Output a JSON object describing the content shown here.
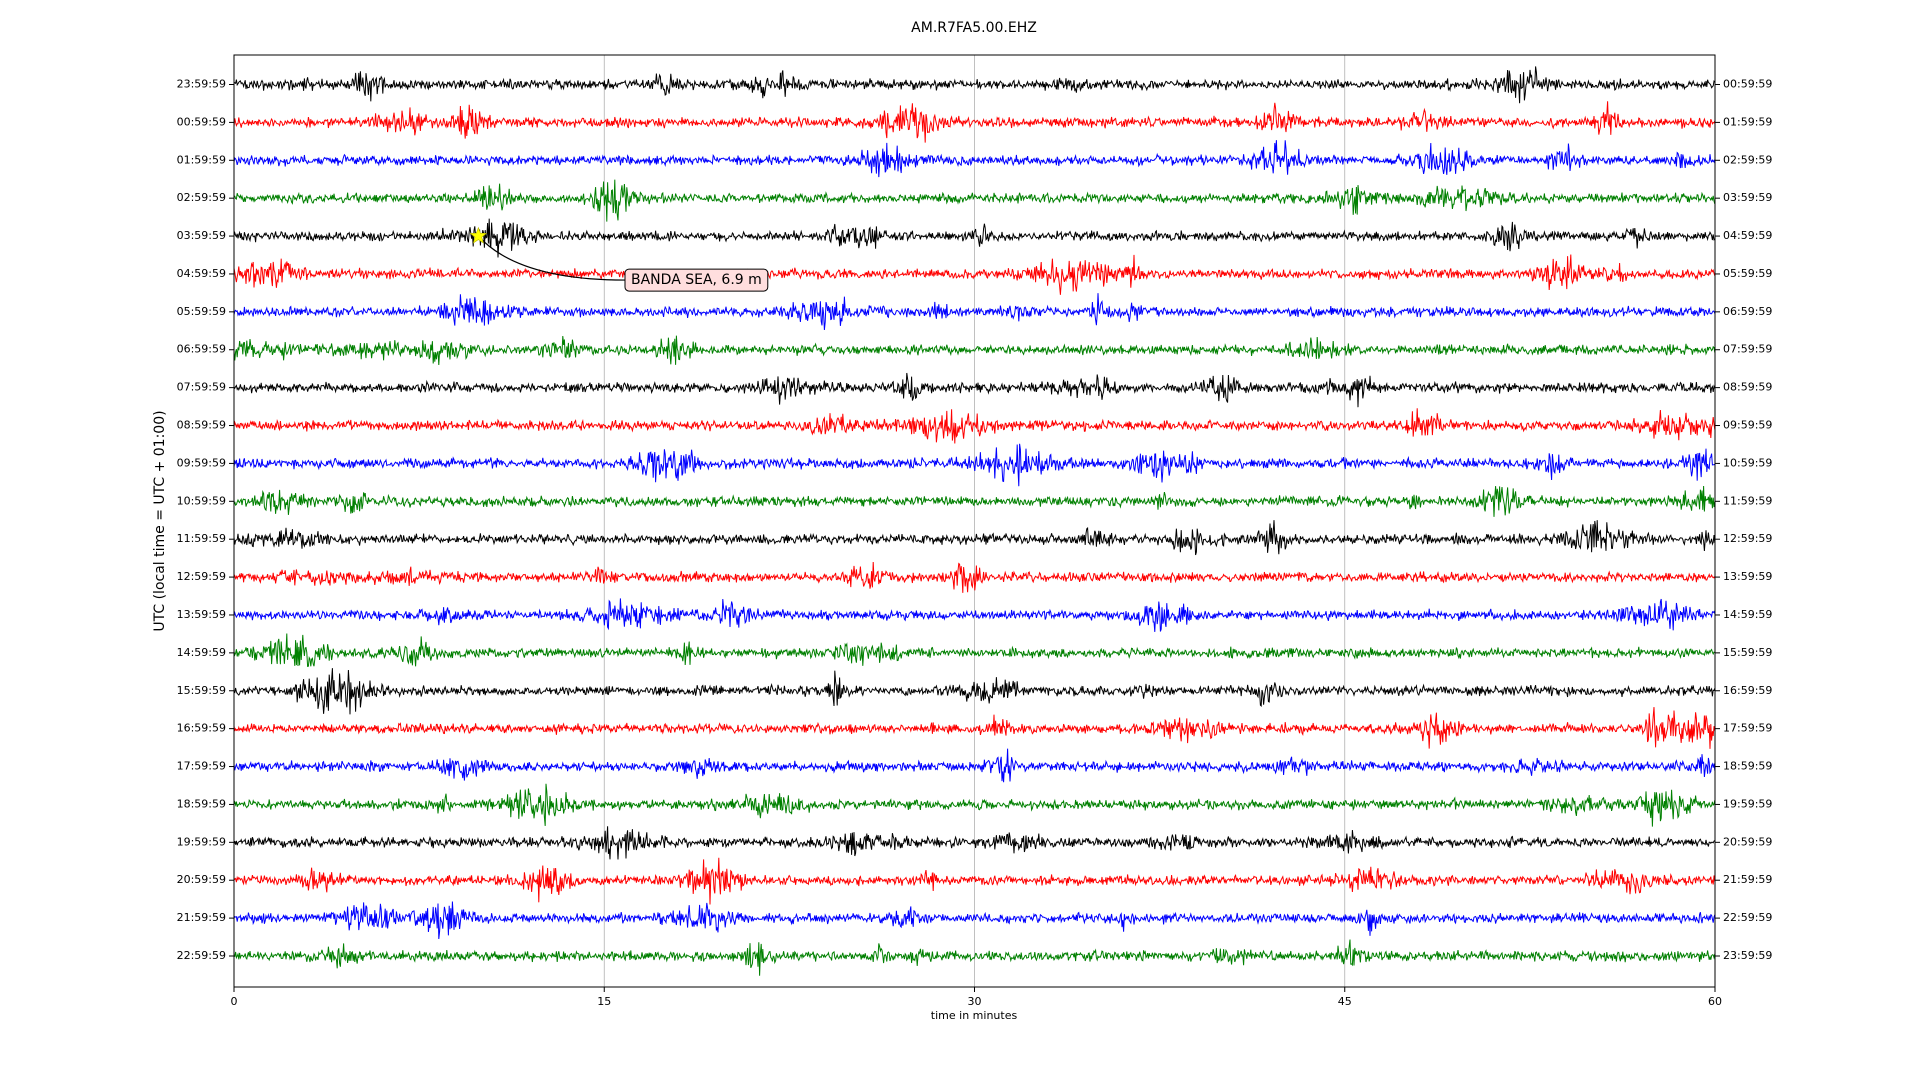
{
  "chart_data": {
    "type": "dayplot",
    "title": "AM.R7FA5.00.EHZ",
    "xlabel": "time in minutes",
    "ylabel": "UTC (local time = UTC + 01:00)",
    "xlim": [
      0,
      60
    ],
    "xticks": [
      0,
      15,
      30,
      45,
      60
    ],
    "grid": true,
    "rows": [
      {
        "left": "23:59:59",
        "right": "00:59:59",
        "color": "#000000"
      },
      {
        "left": "00:59:59",
        "right": "01:59:59",
        "color": "#ff0000"
      },
      {
        "left": "01:59:59",
        "right": "02:59:59",
        "color": "#0000ff"
      },
      {
        "left": "02:59:59",
        "right": "03:59:59",
        "color": "#008000"
      },
      {
        "left": "03:59:59",
        "right": "04:59:59",
        "color": "#000000"
      },
      {
        "left": "04:59:59",
        "right": "05:59:59",
        "color": "#ff0000"
      },
      {
        "left": "05:59:59",
        "right": "06:59:59",
        "color": "#0000ff"
      },
      {
        "left": "06:59:59",
        "right": "07:59:59",
        "color": "#008000"
      },
      {
        "left": "07:59:59",
        "right": "08:59:59",
        "color": "#000000"
      },
      {
        "left": "08:59:59",
        "right": "09:59:59",
        "color": "#ff0000"
      },
      {
        "left": "09:59:59",
        "right": "10:59:59",
        "color": "#0000ff"
      },
      {
        "left": "10:59:59",
        "right": "11:59:59",
        "color": "#008000"
      },
      {
        "left": "11:59:59",
        "right": "12:59:59",
        "color": "#000000"
      },
      {
        "left": "12:59:59",
        "right": "13:59:59",
        "color": "#ff0000"
      },
      {
        "left": "13:59:59",
        "right": "14:59:59",
        "color": "#0000ff"
      },
      {
        "left": "14:59:59",
        "right": "15:59:59",
        "color": "#008000"
      },
      {
        "left": "15:59:59",
        "right": "16:59:59",
        "color": "#000000"
      },
      {
        "left": "16:59:59",
        "right": "17:59:59",
        "color": "#ff0000"
      },
      {
        "left": "17:59:59",
        "right": "18:59:59",
        "color": "#0000ff"
      },
      {
        "left": "18:59:59",
        "right": "19:59:59",
        "color": "#008000"
      },
      {
        "left": "19:59:59",
        "right": "20:59:59",
        "color": "#000000"
      },
      {
        "left": "20:59:59",
        "right": "21:59:59",
        "color": "#ff0000"
      },
      {
        "left": "21:59:59",
        "right": "22:59:59",
        "color": "#0000ff"
      },
      {
        "left": "22:59:59",
        "right": "23:59:59",
        "color": "#008000"
      }
    ],
    "annotation": {
      "text": "BANDA SEA, 6.9 m",
      "x": 9.9,
      "row": 4,
      "marker_color": "#ffff00"
    }
  }
}
